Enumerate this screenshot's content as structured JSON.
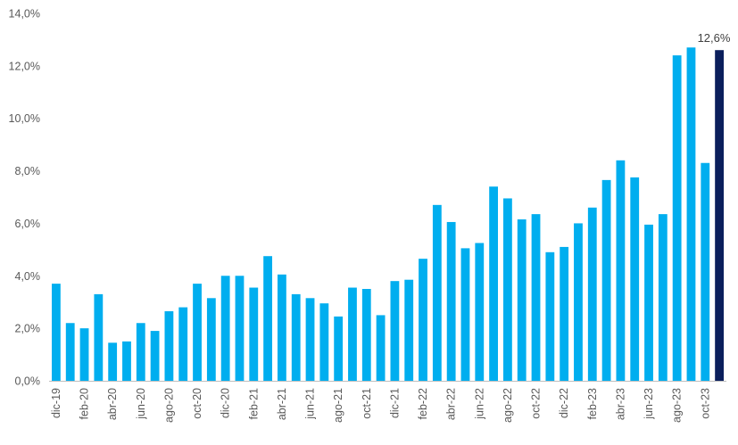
{
  "chart_data": {
    "type": "bar",
    "title": "",
    "xlabel": "",
    "ylabel": "",
    "ylim": [
      0,
      14
    ],
    "y_ticks": [
      "0,0%",
      "2,0%",
      "4,0%",
      "6,0%",
      "8,0%",
      "10,0%",
      "12,0%",
      "14,0%"
    ],
    "y_tick_values": [
      0,
      2,
      4,
      6,
      8,
      10,
      12,
      14
    ],
    "grid": false,
    "legend": "none",
    "categories": [
      "dic-19",
      "ene-20",
      "feb-20",
      "mar-20",
      "abr-20",
      "may-20",
      "jun-20",
      "jul-20",
      "ago-20",
      "sep-20",
      "oct-20",
      "nov-20",
      "dic-20",
      "ene-21",
      "feb-21",
      "mar-21",
      "abr-21",
      "may-21",
      "jun-21",
      "jul-21",
      "ago-21",
      "sep-21",
      "oct-21",
      "nov-21",
      "dic-21",
      "ene-22",
      "feb-22",
      "mar-22",
      "abr-22",
      "may-22",
      "jun-22",
      "jul-22",
      "ago-22",
      "sep-22",
      "oct-22",
      "nov-22",
      "dic-22",
      "ene-23",
      "feb-23",
      "mar-23",
      "abr-23",
      "may-23",
      "jun-23",
      "jul-23",
      "ago-23",
      "sep-23",
      "oct-23",
      "nov-23"
    ],
    "x_labels_shown": [
      "dic-19",
      "feb-20",
      "abr-20",
      "jun-20",
      "ago-20",
      "oct-20",
      "dic-20",
      "feb-21",
      "abr-21",
      "jun-21",
      "ago-21",
      "oct-21",
      "dic-21",
      "feb-22",
      "abr-22",
      "jun-22",
      "ago-22",
      "oct-22",
      "dic-22",
      "feb-23",
      "abr-23",
      "jun-23",
      "ago-23",
      "oct-23"
    ],
    "values": [
      3.7,
      2.2,
      2.0,
      3.3,
      1.45,
      1.5,
      2.2,
      1.9,
      2.65,
      2.8,
      3.7,
      3.15,
      4.0,
      4.0,
      3.55,
      4.75,
      4.05,
      3.3,
      3.15,
      2.95,
      2.45,
      3.55,
      3.5,
      2.5,
      3.8,
      3.85,
      4.65,
      6.7,
      6.05,
      5.05,
      5.25,
      7.4,
      6.95,
      6.15,
      6.35,
      4.9,
      5.1,
      6.0,
      6.6,
      7.65,
      8.4,
      7.75,
      5.95,
      6.35,
      12.4,
      12.7,
      8.3,
      12.6
    ],
    "highlight_index": 47,
    "highlight_label": "12,6%",
    "colors": {
      "bar": "#00aeef",
      "highlight": "#0b1f5c",
      "axis": "#bfbfbf",
      "text": "#595959"
    }
  }
}
